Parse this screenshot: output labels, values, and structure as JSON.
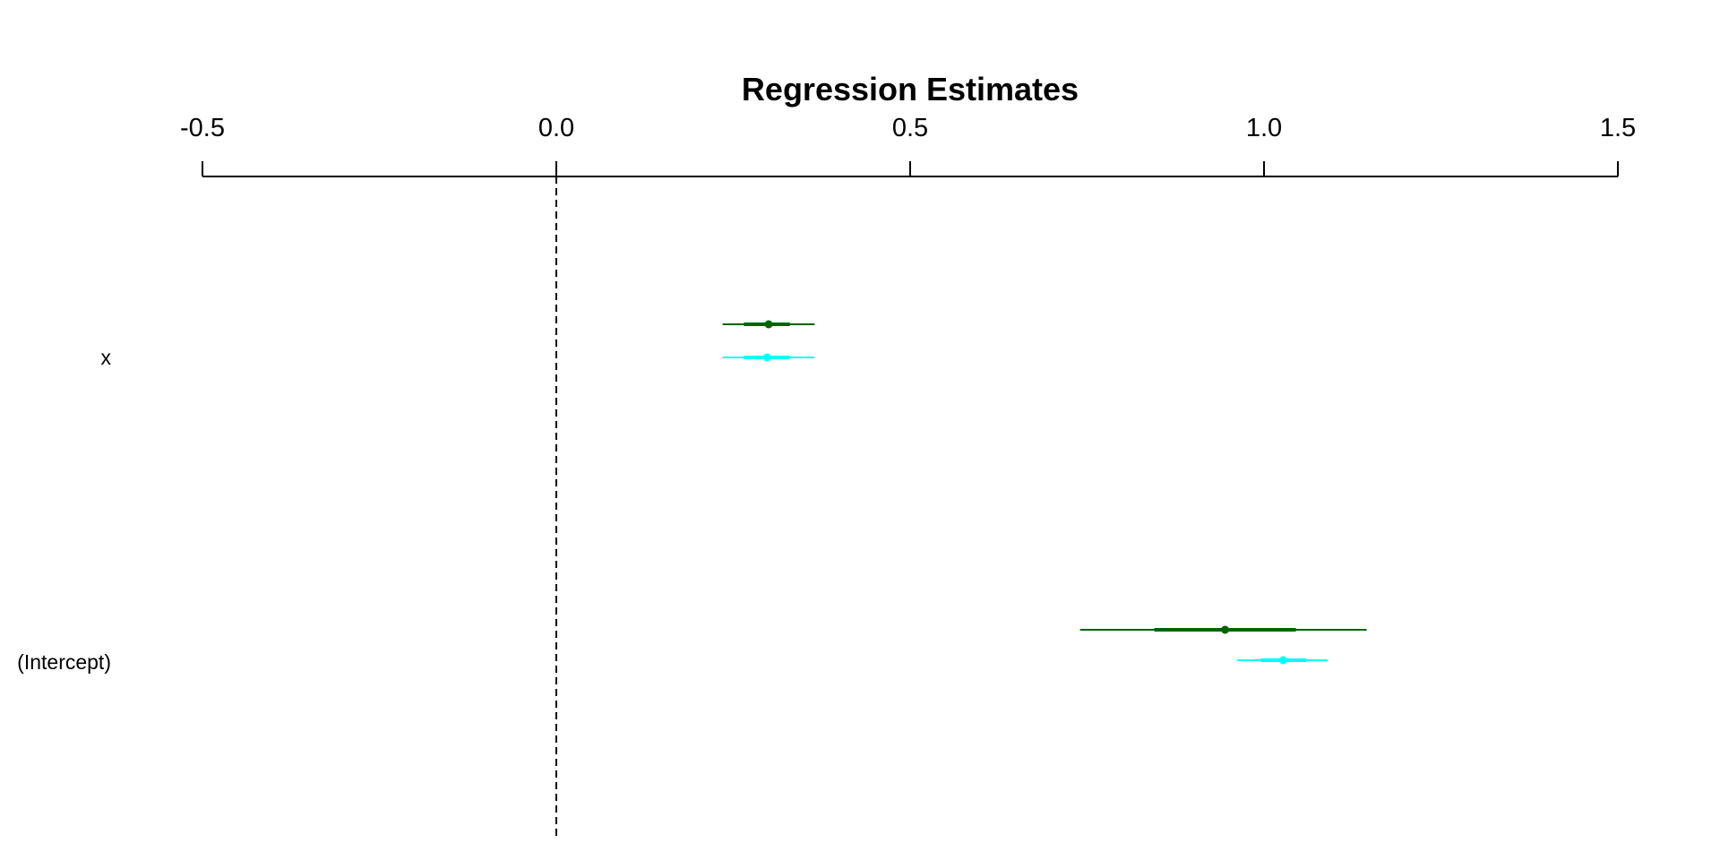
{
  "chart_data": {
    "type": "coefficient-plot",
    "title": "Regression Estimates",
    "xlabel": "",
    "ylabel": "",
    "xlim": [
      -0.5,
      1.5
    ],
    "x_ticks": [
      -0.5,
      0.0,
      0.5,
      1.0,
      1.5
    ],
    "x_tick_labels": [
      "-0.5",
      "0.0",
      "0.5",
      "1.0",
      "1.5"
    ],
    "axis_position": "top",
    "reference_line": {
      "x": 0,
      "style": "dashed"
    },
    "grid": false,
    "categories": [
      "x",
      "(Intercept)"
    ],
    "series": [
      {
        "color": "#006400",
        "points": [
          {
            "category": "x",
            "estimate": 0.3,
            "inner": [
              0.265,
              0.33
            ],
            "outer": [
              0.235,
              0.365
            ]
          },
          {
            "category": "(Intercept)",
            "estimate": 0.945,
            "inner": [
              0.845,
              1.045
            ],
            "outer": [
              0.74,
              1.145
            ]
          }
        ]
      },
      {
        "color": "#00FFFF",
        "points": [
          {
            "category": "x",
            "estimate": 0.298,
            "inner": [
              0.265,
              0.33
            ],
            "outer": [
              0.235,
              0.365
            ]
          },
          {
            "category": "(Intercept)",
            "estimate": 1.027,
            "inner": [
              0.995,
              1.06
            ],
            "outer": [
              0.962,
              1.09
            ]
          }
        ]
      }
    ]
  }
}
